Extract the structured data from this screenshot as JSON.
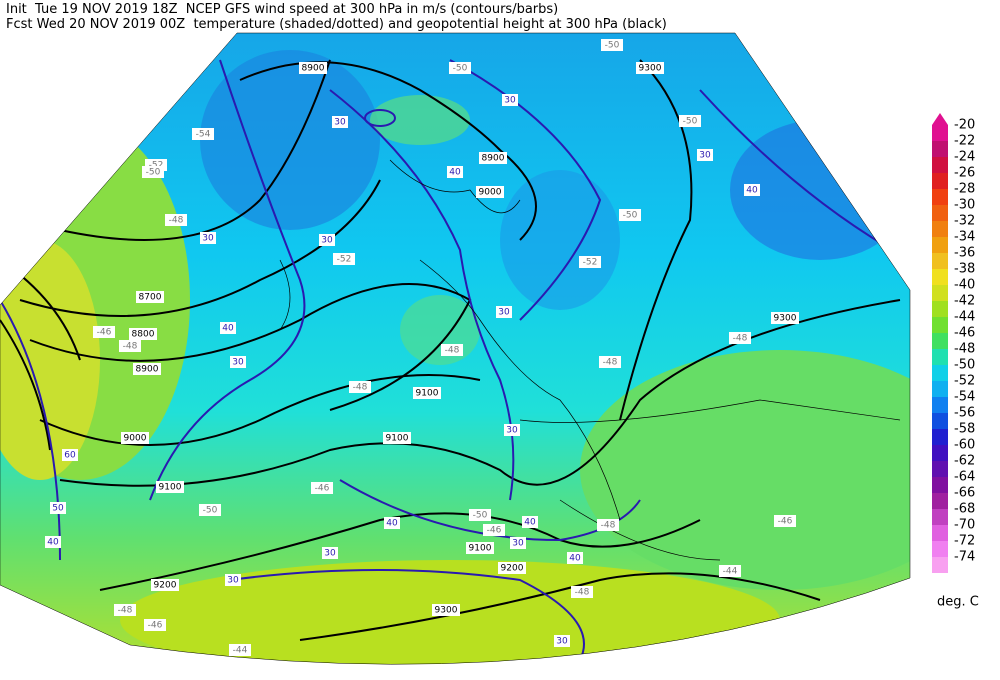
{
  "header": {
    "line1": "Init  Tue 19 NOV 2019 18Z  NCEP GFS wind speed at 300 hPa in m/s (contours/barbs)",
    "line2": "Fcst Wed 20 NOV 2019 00Z  temperature (shaded/dotted) and geopotential height at 300 hPa (black)"
  },
  "colorbar": {
    "labels": [
      "-20",
      "-22",
      "-24",
      "-26",
      "-28",
      "-30",
      "-32",
      "-34",
      "-36",
      "-38",
      "-40",
      "-42",
      "-44",
      "-46",
      "-48",
      "-50",
      "-52",
      "-54",
      "-56",
      "-58",
      "-60",
      "-62",
      "-64",
      "-66",
      "-68",
      "-70",
      "-72",
      "-74"
    ],
    "unit": "deg. C"
  },
  "map": {
    "height_labels": [
      "8900",
      "9300",
      "8900",
      "9000",
      "8700",
      "8800",
      "8900",
      "9000",
      "9100",
      "9100",
      "9100",
      "9200",
      "9100",
      "9200",
      "9300",
      "9300"
    ],
    "wind_labels": [
      "30",
      "30",
      "40",
      "30",
      "30",
      "40",
      "30",
      "30",
      "30",
      "40",
      "30",
      "60",
      "50",
      "40",
      "40",
      "40",
      "30",
      "30",
      "30",
      "40",
      "30"
    ],
    "temperature_labels": [
      "-50",
      "-50",
      "-54",
      "-52",
      "-50",
      "-48",
      "-52",
      "-50",
      "-50",
      "-52",
      "-48",
      "-48",
      "-48",
      "-48",
      "-46",
      "-48",
      "-50",
      "-46",
      "-50",
      "-46",
      "-48",
      "-46",
      "-44",
      "-48",
      "-46",
      "-44",
      "-48"
    ]
  }
}
